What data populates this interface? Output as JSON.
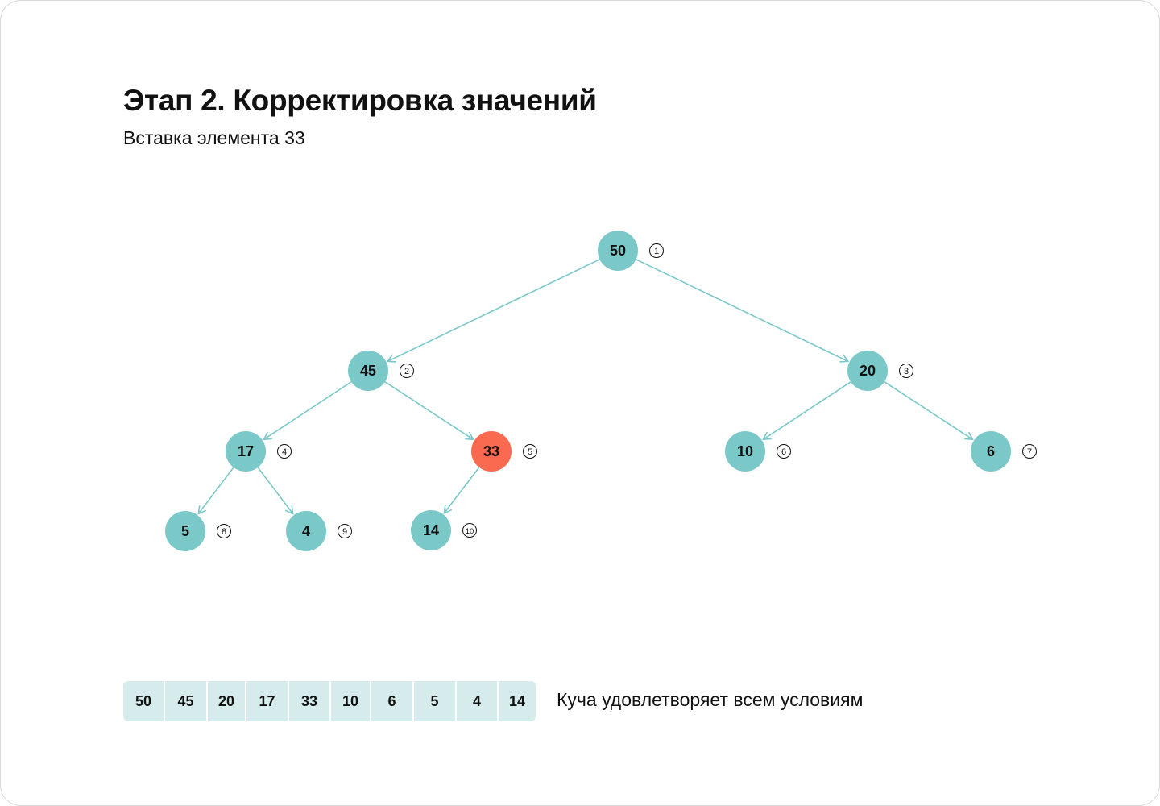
{
  "title": "Этап 2. Корректировка значений",
  "subtitle": "Вставка элемента 33",
  "colors": {
    "node": "#7bc8c8",
    "highlight": "#fa6a50",
    "edge": "#7bc8c8",
    "cell": "#d6ecec"
  },
  "nodes": [
    {
      "id": 1,
      "value": "50",
      "index": "1",
      "highlight": false
    },
    {
      "id": 2,
      "value": "45",
      "index": "2",
      "highlight": false
    },
    {
      "id": 3,
      "value": "20",
      "index": "3",
      "highlight": false
    },
    {
      "id": 4,
      "value": "17",
      "index": "4",
      "highlight": false
    },
    {
      "id": 5,
      "value": "33",
      "index": "5",
      "highlight": true
    },
    {
      "id": 6,
      "value": "10",
      "index": "6",
      "highlight": false
    },
    {
      "id": 7,
      "value": "6",
      "index": "7",
      "highlight": false
    },
    {
      "id": 8,
      "value": "5",
      "index": "8",
      "highlight": false
    },
    {
      "id": 9,
      "value": "4",
      "index": "9",
      "highlight": false
    },
    {
      "id": 10,
      "value": "14",
      "index": "10",
      "highlight": false
    }
  ],
  "edges": [
    [
      1,
      2
    ],
    [
      1,
      3
    ],
    [
      2,
      4
    ],
    [
      2,
      5
    ],
    [
      3,
      6
    ],
    [
      3,
      7
    ],
    [
      4,
      8
    ],
    [
      4,
      9
    ],
    [
      5,
      10
    ]
  ],
  "array": [
    "50",
    "45",
    "20",
    "17",
    "33",
    "10",
    "6",
    "5",
    "4",
    "14"
  ],
  "status": "Куча удовлетворяет всем условиям"
}
